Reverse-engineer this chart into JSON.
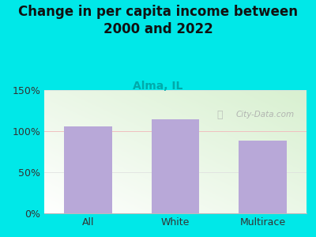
{
  "title": "Change in per capita income between\n2000 and 2022",
  "subtitle": "Alma, IL",
  "categories": [
    "All",
    "White",
    "Multirace"
  ],
  "values": [
    106,
    114,
    88
  ],
  "bar_color": "#b8a8d8",
  "background_color": "#00e8e8",
  "ylabel_ticks": [
    0,
    50,
    100,
    150
  ],
  "ytick_labels": [
    "0%",
    "50%",
    "100%",
    "150%"
  ],
  "ylim": [
    0,
    150
  ],
  "title_fontsize": 12,
  "subtitle_fontsize": 10,
  "subtitle_color": "#00aaaa",
  "tick_label_fontsize": 9,
  "watermark": "City-Data.com",
  "title_color": "#111111",
  "reference_line_color": "#f0c0c0",
  "gradient_colors": [
    "#d8f0d0",
    "#ffffff"
  ],
  "plot_edge_color": "#dddddd"
}
